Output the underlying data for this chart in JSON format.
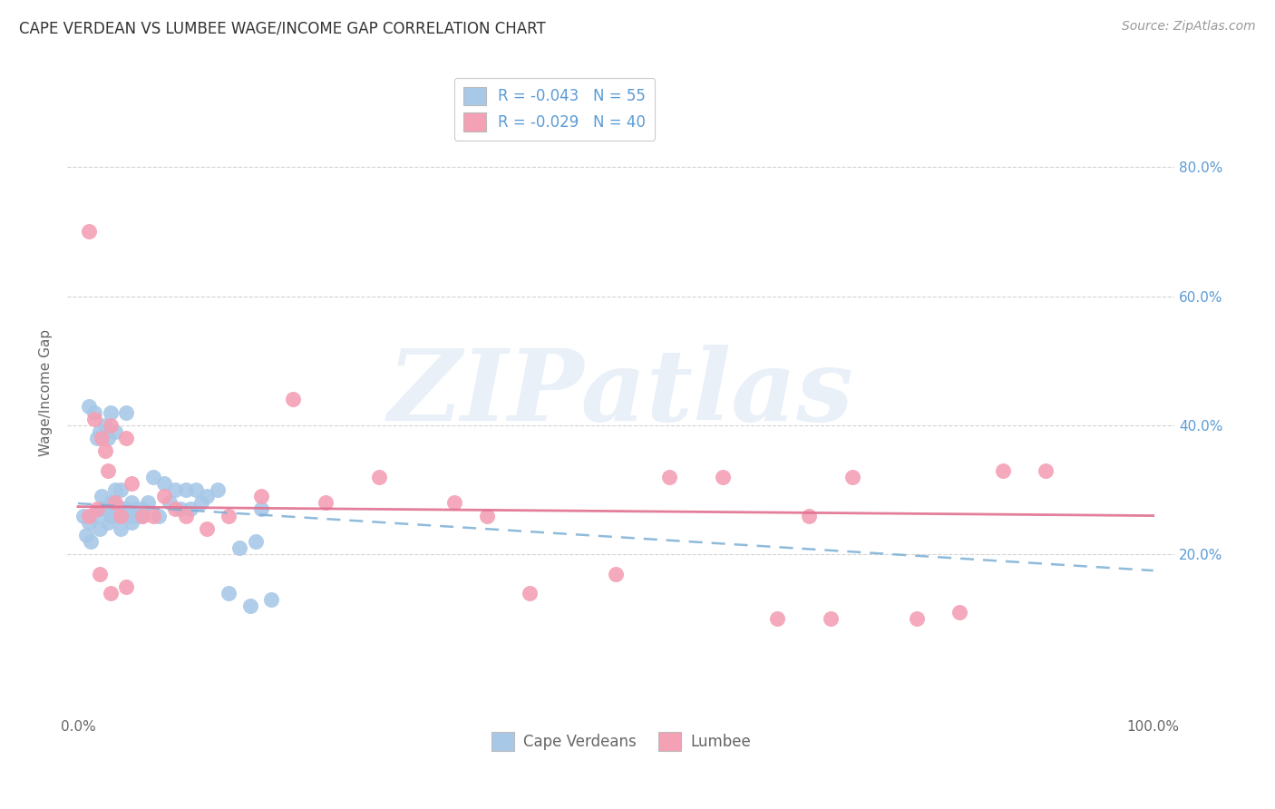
{
  "title": "CAPE VERDEAN VS LUMBEE WAGE/INCOME GAP CORRELATION CHART",
  "source": "Source: ZipAtlas.com",
  "ylabel": "Wage/Income Gap",
  "watermark": "ZIPatlas",
  "legend_r1": "R = -0.043",
  "legend_n1": "N = 55",
  "legend_r2": "R = -0.029",
  "legend_n2": "N = 40",
  "legend_label1": "Cape Verdeans",
  "legend_label2": "Lumbee",
  "xlim": [
    -0.01,
    1.02
  ],
  "ylim": [
    -0.05,
    0.95
  ],
  "color_cape": "#a8c8e8",
  "color_lumbee": "#f4a0b5",
  "color_trend_cape": "#7bafd4",
  "color_trend_lumbee": "#e07090",
  "color_axis_right": "#5b9bd5",
  "background_color": "#ffffff",
  "grid_color": "#c8c8c8",
  "cape_verdean_x": [
    0.005,
    0.008,
    0.01,
    0.01,
    0.012,
    0.015,
    0.015,
    0.018,
    0.02,
    0.02,
    0.022,
    0.022,
    0.025,
    0.025,
    0.028,
    0.028,
    0.03,
    0.03,
    0.03,
    0.032,
    0.033,
    0.035,
    0.035,
    0.038,
    0.04,
    0.04,
    0.042,
    0.045,
    0.045,
    0.048,
    0.05,
    0.05,
    0.052,
    0.055,
    0.058,
    0.06,
    0.065,
    0.07,
    0.075,
    0.08,
    0.085,
    0.09,
    0.095,
    0.1,
    0.105,
    0.11,
    0.115,
    0.12,
    0.13,
    0.14,
    0.15,
    0.16,
    0.165,
    0.17,
    0.18
  ],
  "cape_verdean_y": [
    0.26,
    0.23,
    0.43,
    0.25,
    0.22,
    0.42,
    0.26,
    0.38,
    0.39,
    0.24,
    0.27,
    0.29,
    0.4,
    0.27,
    0.38,
    0.25,
    0.42,
    0.28,
    0.26,
    0.27,
    0.28,
    0.39,
    0.3,
    0.26,
    0.3,
    0.24,
    0.27,
    0.42,
    0.27,
    0.26,
    0.28,
    0.25,
    0.27,
    0.26,
    0.26,
    0.27,
    0.28,
    0.32,
    0.26,
    0.31,
    0.28,
    0.3,
    0.27,
    0.3,
    0.27,
    0.3,
    0.28,
    0.29,
    0.3,
    0.14,
    0.21,
    0.12,
    0.22,
    0.27,
    0.13
  ],
  "lumbee_x": [
    0.01,
    0.015,
    0.018,
    0.022,
    0.025,
    0.028,
    0.03,
    0.035,
    0.04,
    0.045,
    0.05,
    0.06,
    0.07,
    0.08,
    0.09,
    0.1,
    0.12,
    0.14,
    0.17,
    0.2,
    0.23,
    0.28,
    0.35,
    0.38,
    0.42,
    0.5,
    0.55,
    0.6,
    0.65,
    0.68,
    0.7,
    0.72,
    0.78,
    0.82,
    0.86,
    0.9,
    0.01,
    0.02,
    0.03,
    0.045
  ],
  "lumbee_y": [
    0.7,
    0.41,
    0.27,
    0.38,
    0.36,
    0.33,
    0.4,
    0.28,
    0.26,
    0.38,
    0.31,
    0.26,
    0.26,
    0.29,
    0.27,
    0.26,
    0.24,
    0.26,
    0.29,
    0.44,
    0.28,
    0.32,
    0.28,
    0.26,
    0.14,
    0.17,
    0.32,
    0.32,
    0.1,
    0.26,
    0.1,
    0.32,
    0.1,
    0.11,
    0.33,
    0.33,
    0.26,
    0.17,
    0.14,
    0.15
  ],
  "trend_cape_x0": 0.0,
  "trend_cape_y0": 0.279,
  "trend_cape_x1": 1.0,
  "trend_cape_y1": 0.175,
  "trend_lumbee_x0": 0.0,
  "trend_lumbee_y0": 0.274,
  "trend_lumbee_x1": 1.0,
  "trend_lumbee_y1": 0.26
}
